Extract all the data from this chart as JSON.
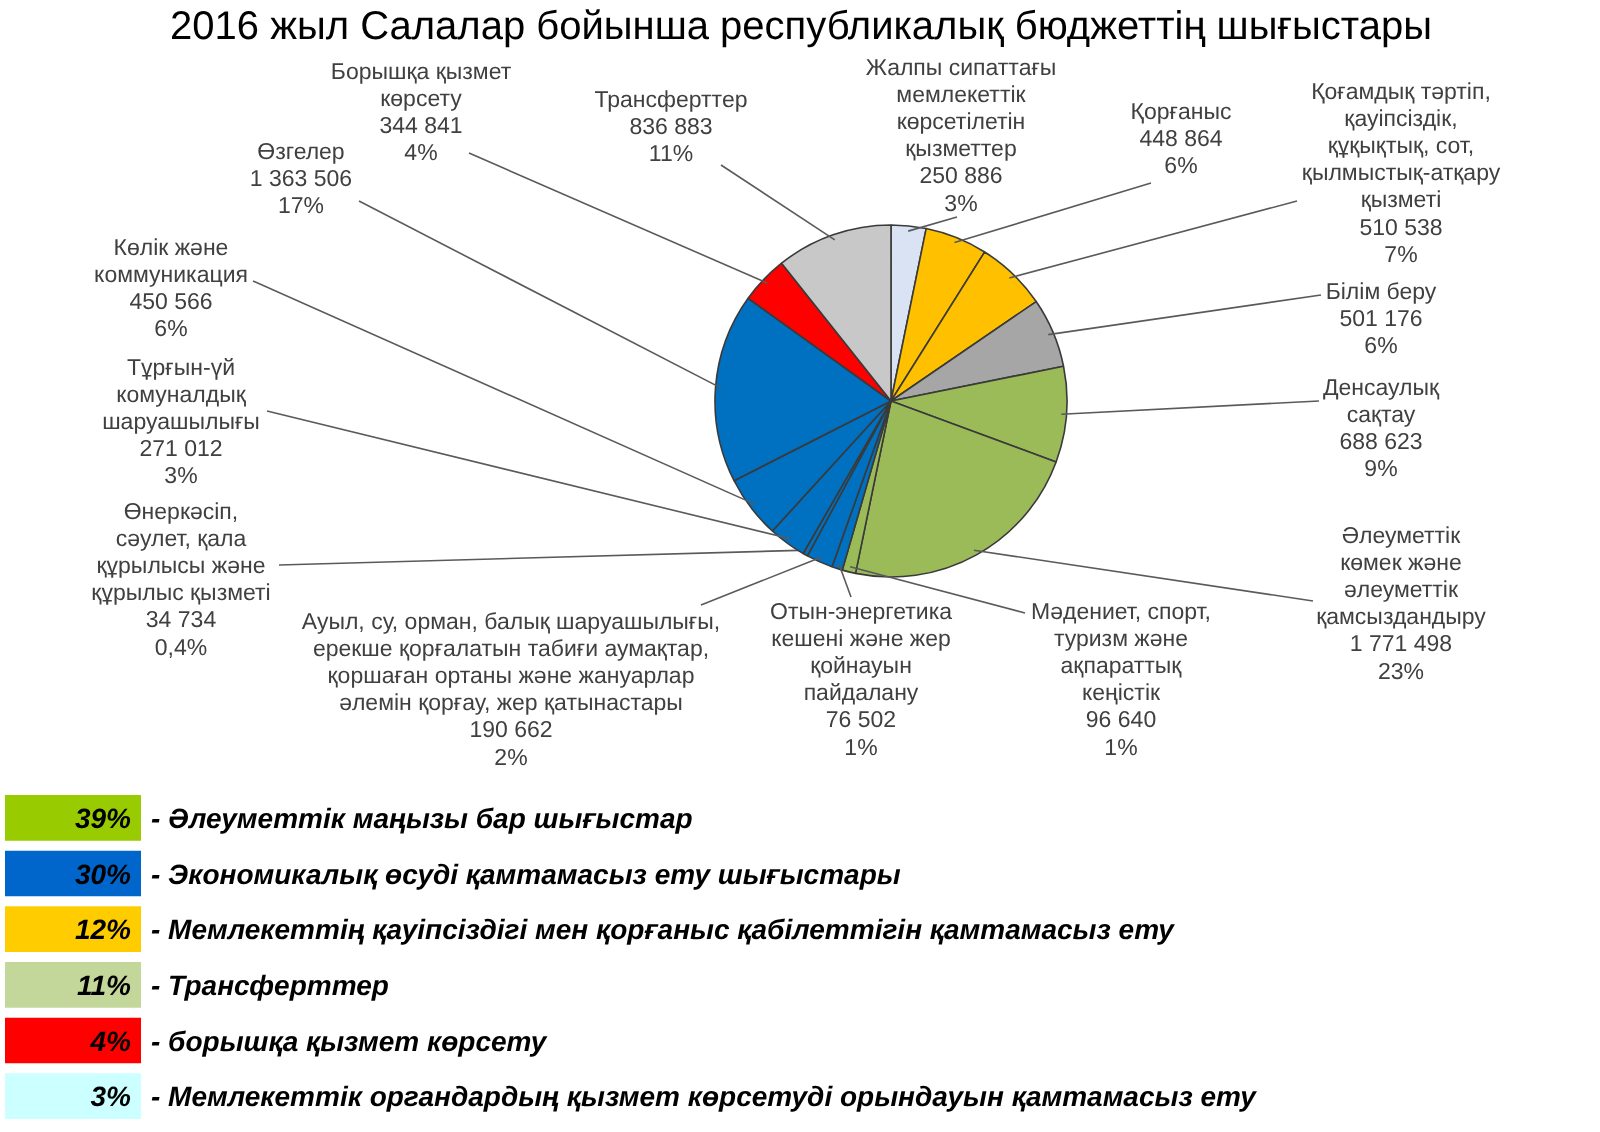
{
  "chart_data": [
    {
      "type": "pie",
      "title": "2016 жыл Салалар бойынша республикалық бюджеттің шығыстары",
      "categories": [
        "Жалпы сипаттағы мемлекеттік көрсетілетін қызметтер",
        "Қорғаныс",
        "Қоғамдық тәртіп, қауіпсіздік, құқықтық, сот, қылмыстық-атқару қызметі",
        "Білім беру",
        "Денсаулық сақтау",
        "Әлеуметтік көмек және әлеуметтік қамсыздандыру",
        "Мәдениет, спорт, туризм және ақпараттық кеңістік",
        "Отын-энергетика кешені және жер қойнауын пайдалану",
        "Ауыл, су, орман, балық шаруашылығы, ерекше қорғалатын табиғи аумақтар, қоршаған ортаны және жануарлар әлемін қорғау, жер қатынастары",
        "Өнеркәсіп, сәулет, қала құрылысы және құрылыс қызметі",
        "Тұрғын-үй комуналдық шаруашылығы",
        "Көлік және коммуникация",
        "Өзгелер",
        "Борышқа қызмет көрсету",
        "Трансферттер"
      ],
      "values": [
        250886,
        448864,
        510538,
        501176,
        688623,
        1771498,
        96640,
        76502,
        190662,
        34734,
        271012,
        450566,
        1363506,
        344841,
        836883
      ],
      "value_labels": [
        "250 886\n3%",
        "448 864\n6%",
        "510 538\n7%",
        "501 176\n6%",
        "688 623\n9%",
        "1 771 498\n23%",
        "96 640\n1%",
        "76 502\n1%",
        "190 662\n2%",
        "34 734\n0,4%",
        "271 012\n3%",
        "450 566\n6%",
        "1 363 506\n17%",
        "344 841\n4%",
        "836 883\n11%"
      ],
      "colors": [
        "#dae3f3",
        "#ffc000",
        "#ffc000",
        "#a6a6a6",
        "#9bbb59",
        "#9bbb59",
        "#9bbb59",
        "#0070c0",
        "#0070c0",
        "#0070c0",
        "#0070c0",
        "#0070c0",
        "#0070c0",
        "#ff0000",
        "#c8c8c8"
      ]
    },
    {
      "type": "other",
      "series": [
        {
          "name": "- Әлеуметтік маңызы бар шығыстар",
          "color": "#99cc00",
          "values": [
            39
          ],
          "value_labels": [
            "39%"
          ]
        },
        {
          "name": "- Экономикалық өсуді қамтамасыз ету шығыстары",
          "color": "#0066cc",
          "values": [
            30
          ],
          "value_labels": [
            "30%"
          ]
        },
        {
          "name": "- Мемлекеттің қауіпсіздігі мен қорғаныс қабілеттігін қамтамасыз ету",
          "color": "#ffcc00",
          "values": [
            12
          ],
          "value_labels": [
            "12%"
          ]
        },
        {
          "name": "- Трансферттер",
          "color": "#c4d79b",
          "values": [
            11
          ],
          "value_labels": [
            "11%"
          ]
        },
        {
          "name": "- борышқа қызмет көрсету",
          "color": "#ff0000",
          "values": [
            4
          ],
          "value_labels": [
            "4%"
          ]
        },
        {
          "name": "- Мемлекеттік органдардың қызмет көрсетуді орындауын қамтамасыз ету",
          "color": "#ccffff",
          "values": [
            3
          ],
          "value_labels": [
            "3%"
          ]
        }
      ]
    }
  ]
}
